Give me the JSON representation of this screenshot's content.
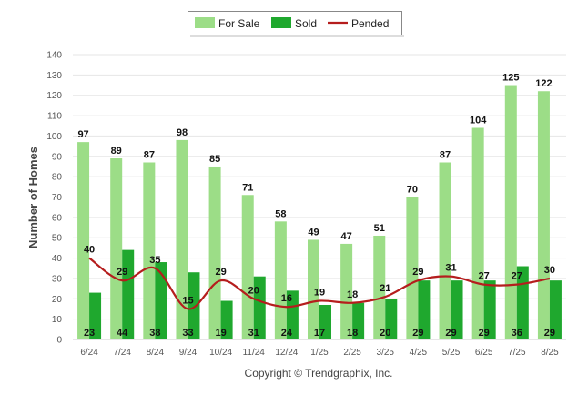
{
  "chart_data": {
    "type": "bar",
    "ylabel": "Number of Homes",
    "ylim": [
      0,
      140
    ],
    "ytick_step": 10,
    "grid": true,
    "legend_position": "top-center",
    "categories": [
      "6/24",
      "7/24",
      "8/24",
      "9/24",
      "10/24",
      "11/24",
      "12/24",
      "1/25",
      "2/25",
      "3/25",
      "4/25",
      "5/25",
      "6/25",
      "7/25",
      "8/25"
    ],
    "series": [
      {
        "name": "For Sale",
        "type": "bar",
        "color": "#9cdd87",
        "values": [
          97,
          89,
          87,
          98,
          85,
          71,
          58,
          49,
          47,
          51,
          70,
          87,
          104,
          125,
          122
        ]
      },
      {
        "name": "Sold",
        "type": "bar",
        "color": "#1fa82e",
        "values": [
          23,
          44,
          38,
          33,
          19,
          31,
          24,
          17,
          18,
          20,
          29,
          29,
          29,
          36,
          29
        ]
      },
      {
        "name": "Pended",
        "type": "line",
        "color": "#b51d1d",
        "values": [
          40,
          29,
          35,
          15,
          29,
          20,
          16,
          19,
          18,
          21,
          29,
          31,
          27,
          27,
          30
        ]
      }
    ]
  },
  "footer": {
    "copyright": "Copyright © Trendgraphix, Inc."
  }
}
